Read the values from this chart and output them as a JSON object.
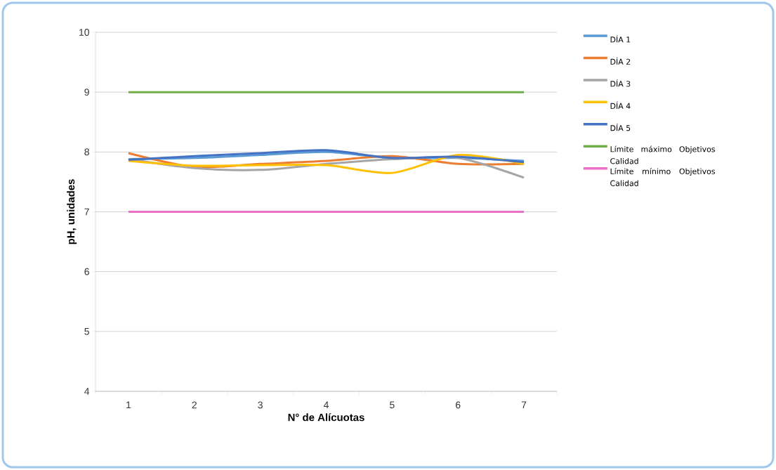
{
  "chart_data": {
    "type": "line",
    "xlabel": "N° de Alícuotas",
    "ylabel": "pH, unidades",
    "categories": [
      "1",
      "2",
      "3",
      "4",
      "5",
      "6",
      "7"
    ],
    "ylim": [
      4,
      10
    ],
    "yticks": [
      4,
      5,
      6,
      7,
      8,
      9,
      10
    ],
    "grid": "y",
    "legend": "right",
    "line_style": "solid",
    "marker": "none",
    "series": [
      {
        "name": "DÍA 1",
        "color": "#5b9bd5",
        "values": [
          7.88,
          7.9,
          7.95,
          8.0,
          7.9,
          7.9,
          7.85
        ]
      },
      {
        "name": "DÍA 2",
        "color": "#ed7d31",
        "values": [
          7.98,
          7.75,
          7.8,
          7.85,
          7.93,
          7.8,
          7.8
        ]
      },
      {
        "name": "DÍA 3",
        "color": "#a5a5a5",
        "values": [
          7.88,
          7.73,
          7.7,
          7.8,
          7.88,
          7.9,
          7.57
        ]
      },
      {
        "name": "DÍA 4",
        "color": "#ffc000",
        "values": [
          7.85,
          7.77,
          7.78,
          7.78,
          7.65,
          7.95,
          7.8
        ]
      },
      {
        "name": "DÍA 5",
        "color": "#4472c4",
        "values": [
          7.87,
          7.93,
          7.98,
          8.03,
          7.9,
          7.92,
          7.83
        ]
      },
      {
        "name": "Límite máximo Objetivos Calidad",
        "color": "#70ad47",
        "values": [
          9,
          9,
          9,
          9,
          9,
          9,
          9
        ]
      },
      {
        "name": "Límite mínimo Objetivos Calidad",
        "color": "#ee6fc9",
        "values": [
          7,
          7,
          7,
          7,
          7,
          7,
          7
        ]
      }
    ]
  }
}
